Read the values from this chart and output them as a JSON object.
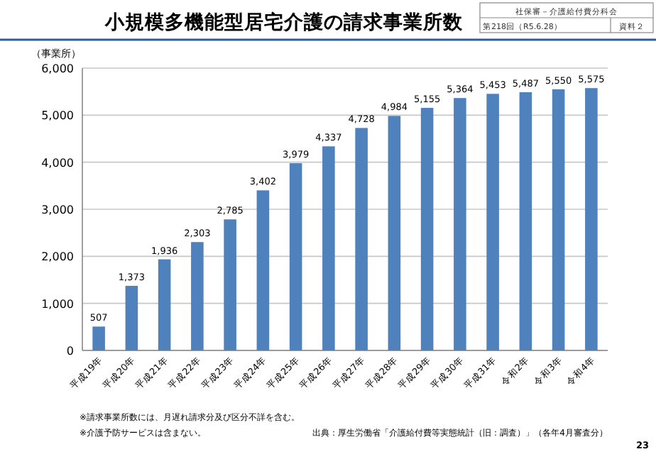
{
  "chart_data": {
    "type": "bar",
    "title": "小規模多機能型居宅介護の請求事業所数",
    "ylabel": "（事業所）",
    "categories": [
      "平成19年",
      "平成20年",
      "平成21年",
      "平成22年",
      "平成23年",
      "平成24年",
      "平成25年",
      "平成26年",
      "平成27年",
      "平成28年",
      "平成29年",
      "平成30年",
      "平成31年",
      "令和2年",
      "令和3年",
      "令和4年"
    ],
    "values": [
      507,
      1373,
      1936,
      2303,
      2785,
      3402,
      3979,
      4337,
      4728,
      4984,
      5155,
      5364,
      5453,
      5487,
      5550,
      5575
    ],
    "value_labels": [
      "507",
      "1,373",
      "1,936",
      "2,303",
      "2,785",
      "3,402",
      "3,979",
      "4,337",
      "4,728",
      "4,984",
      "5,155",
      "5,364",
      "5,453",
      "5,487",
      "5,550",
      "5,575"
    ],
    "color": "#4f81bd",
    "ylim": [
      0,
      6000
    ],
    "yticks": [
      {
        "value": 0,
        "label": "0"
      },
      {
        "value": 1000,
        "label": "1,000"
      },
      {
        "value": 2000,
        "label": "2,000"
      },
      {
        "value": 3000,
        "label": "3,000"
      },
      {
        "value": 4000,
        "label": "4,000"
      },
      {
        "value": 5000,
        "label": "5,000"
      },
      {
        "value": 6000,
        "label": "6,000"
      }
    ],
    "grid": "y",
    "annotations": [
      "社保審－介護給付費分科会",
      "第218回（R5.6.28）",
      "資料２",
      "※請求事業所数には、月遅れ請求分及び区分不詳を含む。",
      "※介護予防サービスは含まない。",
      "出典：厚生労働省「介護給付費等実態統計（旧：調査）」（各年4月審査分）",
      "23"
    ]
  }
}
